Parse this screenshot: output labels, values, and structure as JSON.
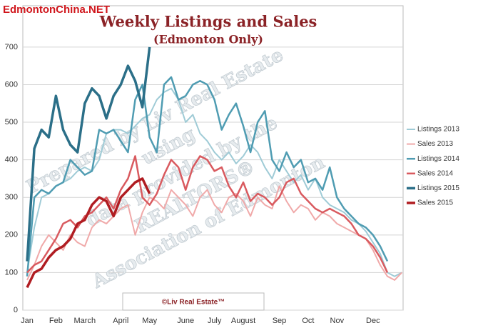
{
  "site_label": "EdmontonChina.NET",
  "watermark": [
    "Prepared by Liv Real Estate",
    "using",
    "data provided by the",
    "REALTORS®",
    "Association of Edmonton"
  ],
  "footer": "©Liv Real Estate™",
  "chart_data": {
    "type": "line",
    "title": "Weekly Listings and Sales",
    "subtitle": "(Edmonton Only)",
    "categories": [
      "Jan",
      null,
      null,
      null,
      "Feb",
      null,
      null,
      null,
      "March",
      null,
      null,
      null,
      null,
      "April",
      null,
      null,
      null,
      "May",
      null,
      null,
      null,
      null,
      "June",
      null,
      null,
      null,
      "July",
      null,
      null,
      null,
      "August",
      null,
      null,
      null,
      null,
      "Sep",
      null,
      null,
      null,
      "Oct",
      null,
      null,
      null,
      "Nov",
      null,
      null,
      null,
      null,
      "Dec",
      null,
      null,
      null,
      null
    ],
    "ylim": [
      0,
      810
    ],
    "yticks": [
      0,
      100,
      200,
      300,
      400,
      500,
      600,
      700
    ],
    "grid": true,
    "legend": "right",
    "series": [
      {
        "name": "Listings 2013",
        "color": "#9fcbd6",
        "width": 2,
        "values": [
          100,
          220,
          300,
          310,
          330,
          340,
          350,
          370,
          380,
          370,
          400,
          470,
          480,
          480,
          470,
          490,
          510,
          520,
          560,
          580,
          590,
          560,
          500,
          520,
          470,
          450,
          420,
          400,
          420,
          390,
          410,
          440,
          420,
          380,
          350,
          400,
          370,
          340,
          360,
          320,
          350,
          300,
          280,
          270,
          260,
          240,
          230,
          210,
          180,
          150,
          100,
          90,
          100
        ]
      },
      {
        "name": "Sales 2013",
        "color": "#f0a9a9",
        "width": 2,
        "values": [
          80,
          120,
          170,
          200,
          180,
          160,
          200,
          180,
          170,
          220,
          240,
          230,
          250,
          270,
          280,
          200,
          260,
          300,
          290,
          270,
          320,
          300,
          280,
          250,
          300,
          320,
          280,
          260,
          300,
          310,
          290,
          250,
          300,
          280,
          270,
          330,
          290,
          260,
          280,
          270,
          240,
          260,
          250,
          230,
          220,
          210,
          200,
          190,
          160,
          120,
          90,
          80,
          100
        ]
      },
      {
        "name": "Listings 2014",
        "color": "#4f9cb2",
        "width": 2.5,
        "values": [
          90,
          300,
          320,
          310,
          330,
          340,
          400,
          380,
          360,
          370,
          480,
          470,
          480,
          450,
          420,
          560,
          600,
          460,
          420,
          600,
          620,
          560,
          570,
          600,
          610,
          600,
          560,
          480,
          520,
          550,
          490,
          420,
          500,
          530,
          400,
          370,
          420,
          380,
          400,
          340,
          350,
          320,
          380,
          300,
          270,
          250,
          230,
          220,
          200,
          170,
          130,
          null,
          null
        ]
      },
      {
        "name": "Sales 2014",
        "color": "#d95a5f",
        "width": 2.5,
        "values": [
          100,
          120,
          130,
          160,
          190,
          230,
          240,
          220,
          250,
          260,
          280,
          300,
          270,
          320,
          350,
          410,
          300,
          280,
          310,
          360,
          400,
          380,
          320,
          380,
          410,
          400,
          370,
          380,
          330,
          300,
          340,
          290,
          310,
          300,
          280,
          300,
          340,
          350,
          310,
          290,
          270,
          260,
          270,
          260,
          250,
          230,
          200,
          190,
          170,
          140,
          100,
          null,
          null
        ]
      },
      {
        "name": "Listings 2015",
        "color": "#2b6f88",
        "width": 3.5,
        "values": [
          130,
          430,
          480,
          460,
          570,
          480,
          440,
          420,
          550,
          590,
          570,
          510,
          570,
          600,
          650,
          610,
          540,
          700,
          null,
          null,
          null,
          null,
          null,
          null,
          null,
          null,
          null,
          null,
          null,
          null,
          null,
          null,
          null,
          null,
          null,
          null,
          null,
          null,
          null,
          null,
          null,
          null,
          null,
          null,
          null,
          null,
          null,
          null,
          null,
          null,
          null,
          null,
          null
        ]
      },
      {
        "name": "Sales 2015",
        "color": "#b01c21",
        "width": 3.5,
        "values": [
          60,
          100,
          110,
          140,
          160,
          170,
          190,
          230,
          240,
          280,
          300,
          290,
          250,
          300,
          320,
          340,
          350,
          310,
          null,
          null,
          null,
          null,
          null,
          null,
          null,
          null,
          null,
          null,
          null,
          null,
          null,
          null,
          null,
          null,
          null,
          null,
          null,
          null,
          null,
          null,
          null,
          null,
          null,
          null,
          null,
          null,
          null,
          null,
          null,
          null,
          null,
          null,
          null
        ]
      }
    ]
  }
}
